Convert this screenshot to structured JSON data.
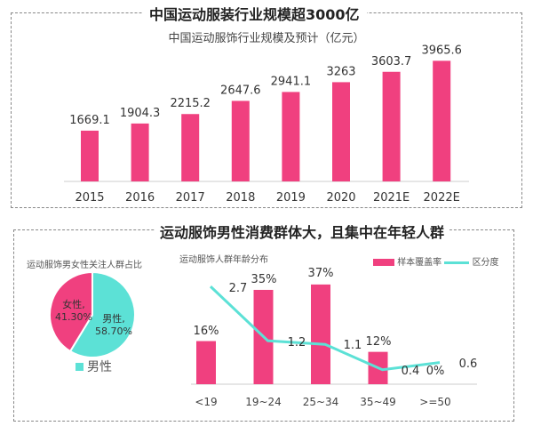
{
  "colors": {
    "bar": "#f0407f",
    "line": "#5ce1d6",
    "male": "#5ce1d6",
    "female": "#f0407f"
  },
  "top": {
    "title": "中国运动服装行业规模超3000亿"
  },
  "bottom": {
    "title": "运动服饰男性消费群体大，且集中在年轻人群"
  },
  "chart_data": [
    {
      "type": "bar",
      "title": "中国运动服饰行业规模及预计（亿元）",
      "categories": [
        "2015",
        "2016",
        "2017",
        "2018",
        "2019",
        "2020",
        "2021E",
        "2022E"
      ],
      "values": [
        1669.1,
        1904.3,
        2215.2,
        2647.6,
        2941.1,
        3263,
        3603.7,
        3965.6
      ],
      "value_labels": [
        "1669.1",
        "1904.3",
        "2215.2",
        "2647.6",
        "2941.1",
        "3263",
        "3603.7",
        "3965.6"
      ],
      "grid": false
    },
    {
      "type": "pie",
      "title": "运动服饰男女性关注人群占比",
      "slices": [
        {
          "label": "男性",
          "value": 58.7,
          "text": "男性,",
          "pct": "58.70%"
        },
        {
          "label": "女性",
          "value": 41.3,
          "text": "女性,",
          "pct": "41.30%"
        }
      ],
      "legend": [
        "男性"
      ],
      "legend_position": "bottom"
    },
    {
      "type": "bar+line",
      "title": "运动服饰人群年龄分布",
      "categories": [
        "<19",
        "19~24",
        "25~34",
        "35~49",
        ">=50"
      ],
      "series": [
        {
          "name": "样本覆盖率",
          "type": "bar",
          "values": [
            16,
            35,
            37,
            12,
            0
          ],
          "labels": [
            "16%",
            "35%",
            "37%",
            "12%",
            "0%"
          ]
        },
        {
          "name": "区分度",
          "type": "line",
          "values": [
            2.7,
            1.2,
            1.1,
            0.4,
            0.6
          ],
          "labels": [
            "2.7",
            "1.2",
            "1.1",
            "0.4",
            "0.6"
          ]
        }
      ],
      "legend_position": "top-right"
    }
  ]
}
